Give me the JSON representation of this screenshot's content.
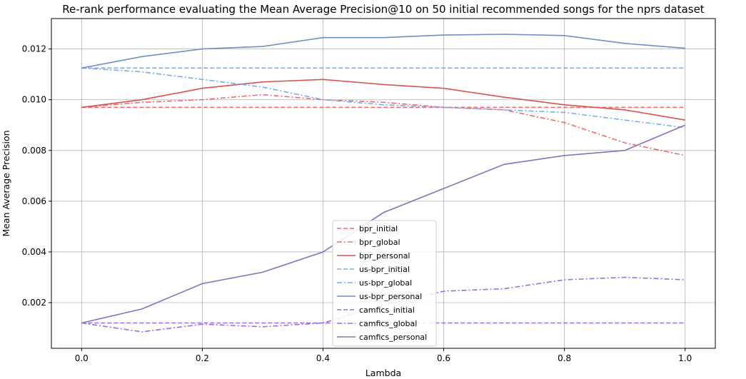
{
  "chart_data": {
    "type": "line",
    "title": "Re-rank performance evaluating the Mean Average Precision@10 on 50 initial recommended songs for the nprs dataset",
    "xlabel": "Lambda",
    "ylabel": "Mean Average Precision",
    "xlim": [
      -0.05,
      1.05
    ],
    "ylim": [
      0.0002,
      0.0132
    ],
    "xticks": [
      0.0,
      0.2,
      0.4,
      0.6,
      0.8,
      1.0
    ],
    "xtick_labels": [
      "0.0",
      "0.2",
      "0.4",
      "0.6",
      "0.8",
      "1.0"
    ],
    "yticks": [
      0.002,
      0.004,
      0.006,
      0.008,
      0.01,
      0.012
    ],
    "ytick_labels": [
      "0.002",
      "0.004",
      "0.006",
      "0.008",
      "0.010",
      "0.012"
    ],
    "grid": true,
    "legend_position": "lower-center",
    "x": [
      0.0,
      0.1,
      0.2,
      0.3,
      0.4,
      0.5,
      0.6,
      0.7,
      0.8,
      0.9,
      1.0
    ],
    "series": [
      {
        "name": "bpr_initial",
        "color": "#f06b6b",
        "dash": "dashed",
        "values": [
          0.0097,
          0.0097,
          0.0097,
          0.0097,
          0.0097,
          0.0097,
          0.0097,
          0.0097,
          0.0097,
          0.0097,
          0.0097
        ]
      },
      {
        "name": "bpr_global",
        "color": "#f06b6b",
        "dash": "dashdot",
        "values": [
          0.0097,
          0.0099,
          0.01,
          0.0102,
          0.01,
          0.0099,
          0.0097,
          0.0096,
          0.0091,
          0.0083,
          0.0078
        ]
      },
      {
        "name": "bpr_personal",
        "color": "#d9534f",
        "dash": "solid",
        "values": [
          0.0097,
          0.01,
          0.01045,
          0.0107,
          0.0108,
          0.0106,
          0.01045,
          0.0101,
          0.0098,
          0.0096,
          0.0092
        ]
      },
      {
        "name": "us-bpr_initial",
        "color": "#7aaaf0",
        "dash": "dashed",
        "values": [
          0.01125,
          0.01125,
          0.01125,
          0.01125,
          0.01125,
          0.01125,
          0.01125,
          0.01125,
          0.01125,
          0.01125,
          0.01125
        ]
      },
      {
        "name": "us-bpr_global",
        "color": "#7aaaf0",
        "dash": "dashdot",
        "values": [
          0.01125,
          0.0111,
          0.0108,
          0.0105,
          0.01,
          0.0098,
          0.0097,
          0.0096,
          0.0095,
          0.0092,
          0.0089
        ]
      },
      {
        "name": "us-bpr_personal",
        "color": "#6f8fc6",
        "dash": "solid",
        "values": [
          0.01125,
          0.0117,
          0.012,
          0.0121,
          0.01245,
          0.01245,
          0.01255,
          0.01258,
          0.01253,
          0.01222,
          0.01203
        ]
      },
      {
        "name": "camfics_initial",
        "color": "#9b6cf0",
        "dash": "dashed",
        "values": [
          0.0012,
          0.0012,
          0.0012,
          0.0012,
          0.0012,
          0.0012,
          0.0012,
          0.0012,
          0.0012,
          0.0012,
          0.0012
        ]
      },
      {
        "name": "camfics_global",
        "color": "#9b6cf0",
        "dash": "dashdot",
        "values": [
          0.0012,
          0.00085,
          0.00115,
          0.00105,
          0.0012,
          0.0019,
          0.00245,
          0.00255,
          0.0029,
          0.003,
          0.0029
        ]
      },
      {
        "name": "camfics_personal",
        "color": "#8a6fbf",
        "dash": "solid",
        "values": [
          0.0012,
          0.00175,
          0.00275,
          0.0032,
          0.004,
          0.00555,
          0.0065,
          0.00745,
          0.0078,
          0.008,
          0.009
        ]
      }
    ]
  }
}
